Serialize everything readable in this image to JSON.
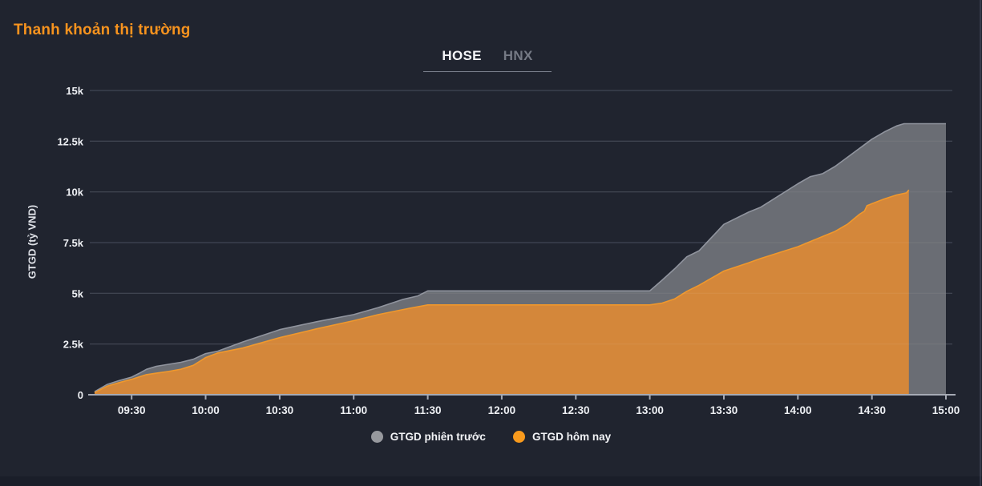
{
  "header": {
    "title": "Thanh khoản thị trường"
  },
  "tabs": [
    {
      "label": "HOSE",
      "active": true
    },
    {
      "label": "HNX",
      "active": false
    }
  ],
  "legend": [
    {
      "label": "GTGD phiên trước",
      "series": "prev"
    },
    {
      "label": "GTGD hôm nay",
      "series": "today"
    }
  ],
  "colors": {
    "background": "#20242f",
    "accent": "#f7931e",
    "footer_strip": "#1a1e29"
  },
  "chart_data": {
    "type": "area",
    "title": "Thanh khoản thị trường",
    "xlabel": "",
    "ylabel": "GTGD (tỷ VND)",
    "ylim": [
      0,
      15000
    ],
    "x_domain": [
      "09:15",
      "15:00"
    ],
    "grid": true,
    "legend_position": "bottom",
    "yticks": [
      {
        "v": 0,
        "label": "0"
      },
      {
        "v": 2500,
        "label": "2.5k"
      },
      {
        "v": 5000,
        "label": "5k"
      },
      {
        "v": 7500,
        "label": "7.5k"
      },
      {
        "v": 10000,
        "label": "10k"
      },
      {
        "v": 12500,
        "label": "12.5k"
      },
      {
        "v": 15000,
        "label": "15k"
      }
    ],
    "xticks": [
      "09:30",
      "10:00",
      "10:30",
      "11:00",
      "11:30",
      "12:00",
      "12:30",
      "13:00",
      "13:30",
      "14:00",
      "14:30",
      "15:00"
    ],
    "colors": {
      "grid": "#3c4150",
      "grid_overlay": "rgba(255,255,255,0.07)",
      "axis": "#a6aab4"
    },
    "series": [
      {
        "id": "prev",
        "name": "GTGD phiên trước",
        "fill": "#6a6d74",
        "stroke": "#90949e",
        "dot": "#97999e",
        "points": [
          [
            "09:15",
            150
          ],
          [
            "09:20",
            500
          ],
          [
            "09:25",
            700
          ],
          [
            "09:30",
            870
          ],
          [
            "09:33",
            1050
          ],
          [
            "09:36",
            1250
          ],
          [
            "09:40",
            1400
          ],
          [
            "09:45",
            1500
          ],
          [
            "09:50",
            1600
          ],
          [
            "09:55",
            1750
          ],
          [
            "10:00",
            2030
          ],
          [
            "10:05",
            2150
          ],
          [
            "10:15",
            2600
          ],
          [
            "10:30",
            3210
          ],
          [
            "10:45",
            3600
          ],
          [
            "11:00",
            3950
          ],
          [
            "11:10",
            4300
          ],
          [
            "11:20",
            4700
          ],
          [
            "11:26",
            4870
          ],
          [
            "11:30",
            5120
          ],
          [
            "13:00",
            5120
          ],
          [
            "13:05",
            5650
          ],
          [
            "13:10",
            6200
          ],
          [
            "13:15",
            6800
          ],
          [
            "13:20",
            7100
          ],
          [
            "13:30",
            8400
          ],
          [
            "13:40",
            9000
          ],
          [
            "13:45",
            9250
          ],
          [
            "14:00",
            10400
          ],
          [
            "14:05",
            10750
          ],
          [
            "14:10",
            10900
          ],
          [
            "14:15",
            11250
          ],
          [
            "14:20",
            11700
          ],
          [
            "14:30",
            12600
          ],
          [
            "14:35",
            12950
          ],
          [
            "14:40",
            13250
          ],
          [
            "14:43",
            13360
          ],
          [
            "15:00",
            13360
          ]
        ]
      },
      {
        "id": "today",
        "name": "GTGD hôm nay",
        "fill": "#d4873a",
        "stroke": "#f0982c",
        "dot": "#f89a1d",
        "points": [
          [
            "09:15",
            100
          ],
          [
            "09:20",
            420
          ],
          [
            "09:25",
            600
          ],
          [
            "09:30",
            760
          ],
          [
            "09:33",
            880
          ],
          [
            "09:36",
            990
          ],
          [
            "09:40",
            1060
          ],
          [
            "09:45",
            1150
          ],
          [
            "09:50",
            1260
          ],
          [
            "09:55",
            1450
          ],
          [
            "10:00",
            1830
          ],
          [
            "10:05",
            2060
          ],
          [
            "10:15",
            2300
          ],
          [
            "10:30",
            2815
          ],
          [
            "10:45",
            3250
          ],
          [
            "11:00",
            3650
          ],
          [
            "11:10",
            3950
          ],
          [
            "11:20",
            4200
          ],
          [
            "11:30",
            4430
          ],
          [
            "13:00",
            4430
          ],
          [
            "13:05",
            4520
          ],
          [
            "13:10",
            4720
          ],
          [
            "13:15",
            5100
          ],
          [
            "13:20",
            5400
          ],
          [
            "13:30",
            6100
          ],
          [
            "13:40",
            6500
          ],
          [
            "13:45",
            6720
          ],
          [
            "14:00",
            7300
          ],
          [
            "14:10",
            7800
          ],
          [
            "14:15",
            8050
          ],
          [
            "14:20",
            8400
          ],
          [
            "14:25",
            8900
          ],
          [
            "14:27",
            9050
          ],
          [
            "14:28",
            9320
          ],
          [
            "14:30",
            9420
          ],
          [
            "14:35",
            9650
          ],
          [
            "14:40",
            9850
          ],
          [
            "14:44",
            9950
          ],
          [
            "14:45",
            10100
          ]
        ]
      }
    ]
  }
}
